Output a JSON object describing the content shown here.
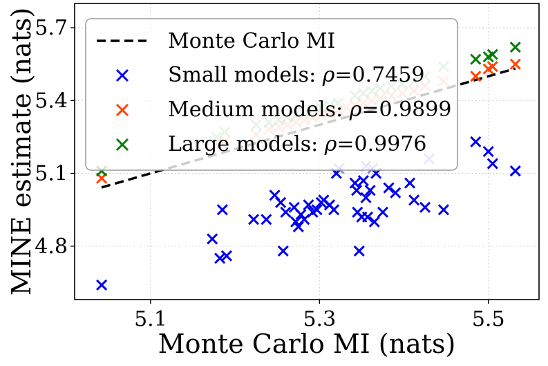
{
  "chart_data": {
    "type": "scatter",
    "title": "",
    "xlabel": "Monte Carlo MI (nats)",
    "ylabel": "MINE estimate (nats)",
    "xlim": [
      5.01,
      5.56
    ],
    "ylim": [
      4.58,
      5.8
    ],
    "xticks": [
      "5.1",
      "5.3",
      "5.5"
    ],
    "xtick_values": [
      5.1,
      5.3,
      5.5
    ],
    "yticks": [
      "4.8",
      "5.1",
      "5.4",
      "5.7"
    ],
    "ytick_values": [
      4.8,
      5.1,
      5.4,
      5.7
    ],
    "grid": true,
    "legend_position": "top-left",
    "reference_line": {
      "name": "Monte Carlo MI",
      "color": "#000000",
      "style": "dashed",
      "x": [
        5.042,
        5.532
      ],
      "y": [
        5.042,
        5.532
      ]
    },
    "series": [
      {
        "name": "Small models",
        "legend_label": "Small models: ",
        "rho_label": "=0.7459",
        "color": "#0000ee",
        "marker": "x",
        "points": [
          [
            5.042,
            4.64
          ],
          [
            5.173,
            4.83
          ],
          [
            5.182,
            4.75
          ],
          [
            5.185,
            4.95
          ],
          [
            5.19,
            4.76
          ],
          [
            5.222,
            4.91
          ],
          [
            5.237,
            4.91
          ],
          [
            5.247,
            5.01
          ],
          [
            5.254,
            4.98
          ],
          [
            5.257,
            4.78
          ],
          [
            5.26,
            4.94
          ],
          [
            5.27,
            4.96
          ],
          [
            5.272,
            4.9
          ],
          [
            5.275,
            4.88
          ],
          [
            5.278,
            4.93
          ],
          [
            5.282,
            4.91
          ],
          [
            5.287,
            4.97
          ],
          [
            5.292,
            4.94
          ],
          [
            5.297,
            4.95
          ],
          [
            5.302,
            4.98
          ],
          [
            5.305,
            4.99
          ],
          [
            5.312,
            4.97
          ],
          [
            5.317,
            4.95
          ],
          [
            5.32,
            5.1
          ],
          [
            5.342,
            5.06
          ],
          [
            5.344,
            5.03
          ],
          [
            5.345,
            4.94
          ],
          [
            5.347,
            4.78
          ],
          [
            5.35,
            4.92
          ],
          [
            5.352,
            5.07
          ],
          [
            5.355,
            5.0
          ],
          [
            5.357,
            4.92
          ],
          [
            5.36,
            5.03
          ],
          [
            5.365,
            4.9
          ],
          [
            5.367,
            5.1
          ],
          [
            5.375,
            4.94
          ],
          [
            5.382,
            5.04
          ],
          [
            5.39,
            5.02
          ],
          [
            5.407,
            5.06
          ],
          [
            5.412,
            4.99
          ],
          [
            5.425,
            4.96
          ],
          [
            5.447,
            4.95
          ],
          [
            5.485,
            5.23
          ],
          [
            5.5,
            5.19
          ],
          [
            5.505,
            5.14
          ],
          [
            5.532,
            5.11
          ]
        ],
        "faded_points": [
          [
            5.323,
            5.12
          ],
          [
            5.355,
            5.13
          ],
          [
            5.363,
            5.12
          ],
          [
            5.43,
            5.16
          ]
        ]
      },
      {
        "name": "Medium models",
        "legend_label": "Medium models: ",
        "rho_label": "=0.9899",
        "color": "#ff4500",
        "marker": "x",
        "points": [
          [
            5.042,
            5.08
          ],
          [
            5.485,
            5.5
          ],
          [
            5.5,
            5.53
          ],
          [
            5.505,
            5.54
          ],
          [
            5.532,
            5.55
          ]
        ],
        "faded_points": [
          [
            5.178,
            5.22
          ],
          [
            5.188,
            5.23
          ],
          [
            5.225,
            5.26
          ],
          [
            5.24,
            5.28
          ],
          [
            5.252,
            5.29
          ],
          [
            5.262,
            5.3
          ],
          [
            5.272,
            5.31
          ],
          [
            5.282,
            5.32
          ],
          [
            5.292,
            5.33
          ],
          [
            5.302,
            5.34
          ],
          [
            5.312,
            5.35
          ],
          [
            5.322,
            5.36
          ],
          [
            5.332,
            5.37
          ],
          [
            5.342,
            5.38
          ],
          [
            5.352,
            5.39
          ],
          [
            5.362,
            5.4
          ],
          [
            5.372,
            5.41
          ],
          [
            5.385,
            5.42
          ],
          [
            5.398,
            5.43
          ],
          [
            5.412,
            5.44
          ],
          [
            5.425,
            5.46
          ],
          [
            5.447,
            5.48
          ]
        ]
      },
      {
        "name": "Large models",
        "legend_label": "Large models: ",
        "rho_label": "=0.9976",
        "color": "#008000",
        "marker": "x",
        "points": [
          [
            5.042,
            5.11
          ],
          [
            5.485,
            5.57
          ],
          [
            5.5,
            5.58
          ],
          [
            5.505,
            5.59
          ],
          [
            5.532,
            5.62
          ]
        ],
        "faded_points": [
          [
            5.178,
            5.25
          ],
          [
            5.188,
            5.27
          ],
          [
            5.225,
            5.3
          ],
          [
            5.24,
            5.31
          ],
          [
            5.252,
            5.32
          ],
          [
            5.262,
            5.33
          ],
          [
            5.272,
            5.34
          ],
          [
            5.282,
            5.35
          ],
          [
            5.292,
            5.36
          ],
          [
            5.302,
            5.37
          ],
          [
            5.312,
            5.38
          ],
          [
            5.322,
            5.39
          ],
          [
            5.342,
            5.42
          ],
          [
            5.352,
            5.43
          ],
          [
            5.362,
            5.44
          ],
          [
            5.372,
            5.45
          ],
          [
            5.385,
            5.46
          ],
          [
            5.398,
            5.47
          ],
          [
            5.412,
            5.48
          ],
          [
            5.425,
            5.5
          ],
          [
            5.447,
            5.54
          ]
        ]
      }
    ],
    "rho_symbol": "ρ"
  }
}
